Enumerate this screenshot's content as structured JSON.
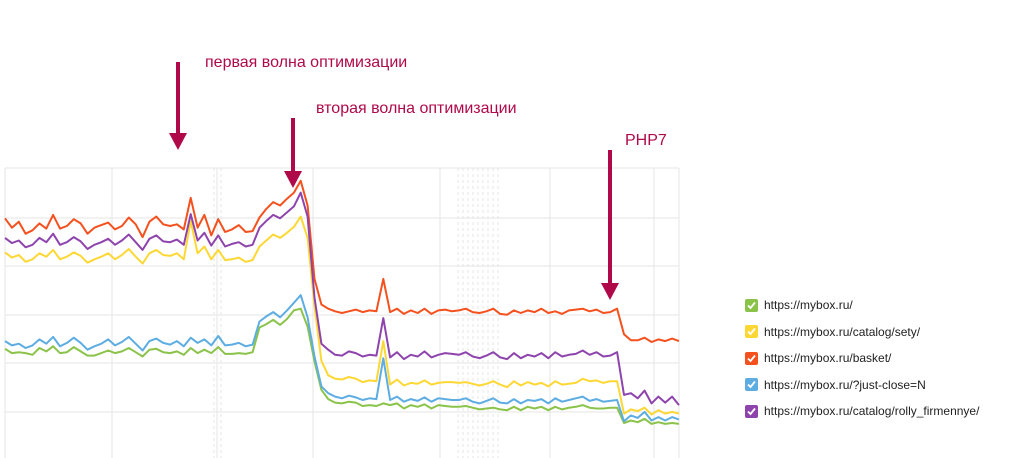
{
  "chart_data": {
    "type": "line",
    "grid": true,
    "legend_placement": "right",
    "annotations": [
      {
        "text": "первая волна оптимизации",
        "x_index": 26
      },
      {
        "text": "вторая волна оптимизации",
        "x_index": 42
      },
      {
        "text": "PHP7",
        "x_index": 88
      }
    ],
    "series": [
      {
        "name": "https://mybox.ru/",
        "color": "#8bc34a",
        "values": [
          128,
          123,
          124,
          123,
          121,
          129,
          125,
          131,
          123,
          124,
          130,
          125,
          120,
          120,
          123,
          126,
          123,
          125,
          129,
          124,
          119,
          127,
          128,
          124,
          123,
          125,
          121,
          129,
          123,
          127,
          123,
          130,
          122,
          122,
          123,
          122,
          124,
          153,
          157,
          162,
          156,
          163,
          173,
          175,
          154,
          113,
          80,
          69,
          65,
          64,
          66,
          65,
          61,
          62,
          61,
          64,
          62,
          64,
          58,
          62,
          60,
          63,
          58,
          62,
          61,
          60,
          60,
          61,
          59,
          57,
          58,
          59,
          57,
          56,
          60,
          56,
          60,
          58,
          60,
          56,
          60,
          57,
          59,
          60,
          62,
          59,
          58,
          58,
          59,
          59,
          41,
          44,
          42,
          46,
          40,
          42,
          40,
          41,
          40
        ]
      },
      {
        "name": "https://mybox.ru/catalog/sety/",
        "color": "#fdd835",
        "values": [
          241,
          235,
          238,
          230,
          233,
          240,
          236,
          244,
          233,
          236,
          241,
          237,
          229,
          233,
          236,
          240,
          233,
          238,
          245,
          236,
          228,
          240,
          244,
          238,
          237,
          240,
          233,
          278,
          240,
          248,
          233,
          244,
          232,
          233,
          235,
          230,
          232,
          248,
          255,
          262,
          258,
          264,
          271,
          283,
          258,
          178,
          114,
          97,
          93,
          92,
          95,
          93,
          89,
          91,
          90,
          137,
          86,
          92,
          85,
          88,
          87,
          91,
          86,
          88,
          89,
          89,
          88,
          89,
          87,
          85,
          87,
          90,
          86,
          83,
          90,
          85,
          89,
          86,
          88,
          84,
          90,
          86,
          87,
          88,
          93,
          90,
          91,
          88,
          90,
          90,
          52,
          57,
          55,
          59,
          51,
          56,
          52,
          54,
          52
        ]
      },
      {
        "name": "https://mybox.ru/basket/",
        "color": "#f4511e",
        "values": [
          281,
          270,
          277,
          263,
          267,
          275,
          269,
          285,
          269,
          272,
          280,
          275,
          263,
          270,
          273,
          276,
          268,
          272,
          282,
          274,
          259,
          277,
          283,
          274,
          272,
          274,
          268,
          305,
          270,
          285,
          261,
          280,
          265,
          268,
          273,
          265,
          266,
          282,
          292,
          300,
          296,
          304,
          311,
          325,
          296,
          210,
          180,
          175,
          172,
          170,
          172,
          174,
          171,
          173,
          172,
          210,
          171,
          175,
          169,
          173,
          170,
          175,
          169,
          173,
          174,
          172,
          173,
          175,
          171,
          170,
          172,
          175,
          169,
          168,
          173,
          170,
          173,
          171,
          175,
          170,
          172,
          169,
          173,
          174,
          175,
          172,
          174,
          170,
          171,
          175,
          145,
          138,
          138,
          141,
          136,
          139,
          137,
          140,
          137
        ]
      },
      {
        "name": "https://mybox.ru/?just-close=N",
        "color": "#5dade2",
        "values": [
          137,
          132,
          134,
          129,
          132,
          139,
          134,
          142,
          131,
          135,
          141,
          135,
          127,
          131,
          134,
          139,
          132,
          136,
          142,
          134,
          126,
          137,
          140,
          135,
          133,
          137,
          131,
          141,
          135,
          139,
          132,
          143,
          132,
          133,
          135,
          131,
          133,
          160,
          166,
          171,
          165,
          173,
          182,
          191,
          165,
          119,
          84,
          76,
          72,
          70,
          73,
          71,
          68,
          70,
          69,
          117,
          68,
          72,
          66,
          69,
          67,
          71,
          66,
          70,
          69,
          68,
          68,
          70,
          66,
          64,
          67,
          70,
          65,
          64,
          69,
          64,
          68,
          67,
          69,
          64,
          70,
          66,
          68,
          70,
          72,
          67,
          69,
          66,
          67,
          68,
          43,
          50,
          47,
          54,
          44,
          48,
          44,
          48,
          45
        ]
      },
      {
        "name": "https://mybox.ru/catalog/rolly_firmennye/",
        "color": "#8e44ad",
        "values": [
          258,
          252,
          255,
          247,
          250,
          258,
          253,
          263,
          250,
          253,
          259,
          254,
          245,
          250,
          253,
          257,
          250,
          255,
          262,
          253,
          244,
          257,
          261,
          254,
          253,
          256,
          250,
          286,
          255,
          264,
          249,
          261,
          248,
          251,
          253,
          248,
          250,
          270,
          278,
          285,
          281,
          288,
          295,
          311,
          283,
          188,
          134,
          127,
          121,
          120,
          125,
          123,
          119,
          121,
          120,
          164,
          118,
          124,
          116,
          121,
          119,
          125,
          118,
          121,
          123,
          122,
          121,
          124,
          119,
          117,
          120,
          124,
          118,
          116,
          123,
          117,
          121,
          119,
          123,
          117,
          124,
          119,
          121,
          122,
          126,
          121,
          124,
          119,
          120,
          124,
          74,
          76,
          70,
          79,
          64,
          72,
          65,
          72,
          62
        ]
      }
    ]
  }
}
